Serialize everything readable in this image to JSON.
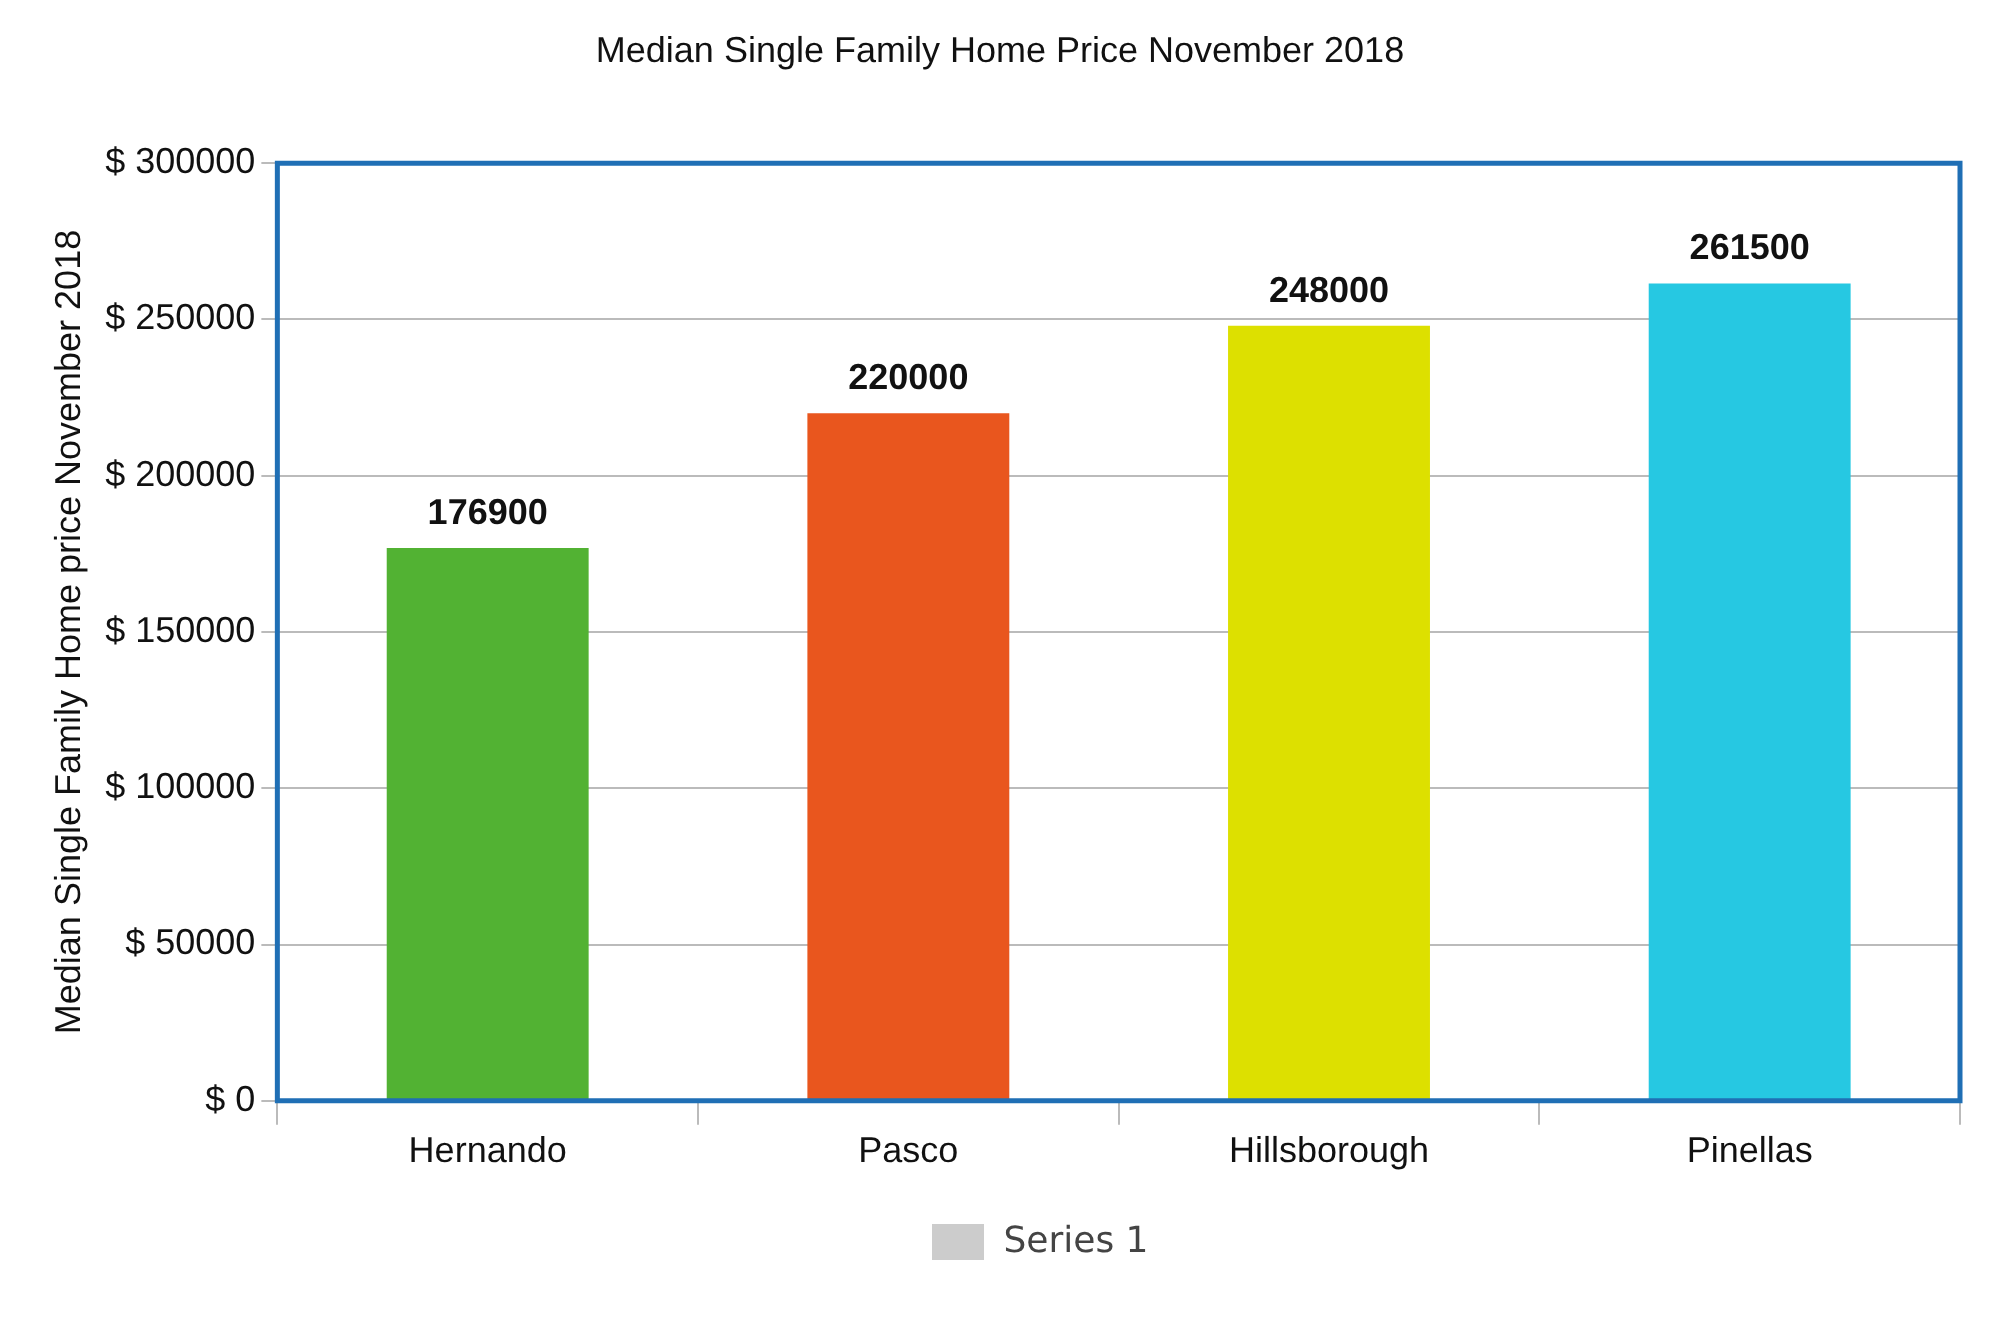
{
  "chart_data": {
    "type": "bar",
    "title": "Median Single Family Home Price November 2018",
    "ylabel": "Median Single Family Home price November 2018",
    "categories": [
      "Hernando",
      "Pasco",
      "Hillsborough",
      "Pinellas"
    ],
    "series": [
      {
        "name": "Series 1",
        "color": "#cccccc",
        "colors": [
          "#52b233",
          "#e9561e",
          "#dde000",
          "#26c8e2"
        ],
        "values": [
          176900,
          220000,
          248000,
          261500
        ]
      }
    ],
    "ylim": [
      0,
      300000
    ],
    "yticks": [
      {
        "value": 0,
        "label": "$ 0"
      },
      {
        "value": 50000,
        "label": "$ 50000"
      },
      {
        "value": 100000,
        "label": "$ 100000"
      },
      {
        "value": 150000,
        "label": "$ 150000"
      },
      {
        "value": 200000,
        "label": "$ 200000"
      },
      {
        "value": 250000,
        "label": "$ 250000"
      },
      {
        "value": 300000,
        "label": "$ 300000"
      }
    ],
    "grid": "y",
    "legend": "bottom",
    "data_labels": true
  }
}
